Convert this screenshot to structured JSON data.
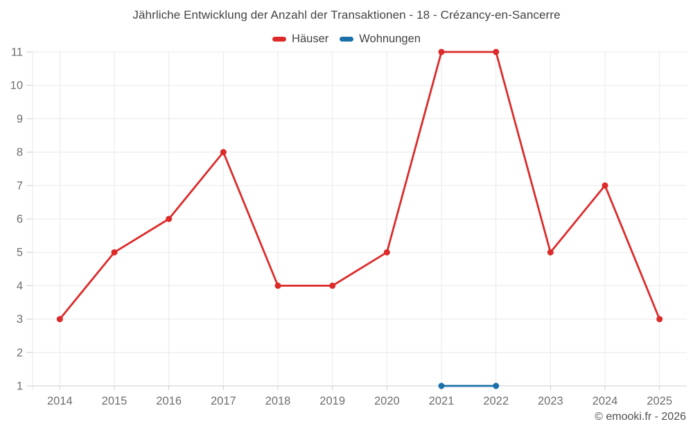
{
  "title": "Jährliche Entwicklung der Anzahl der Transaktionen - 18 - Crézancy-en-Sancerre",
  "copyright": "© emooki.fr - 2026",
  "colors": {
    "grid": "#e8e8e8",
    "axis": "#cccccc",
    "tick_label": "#6e6e6e",
    "title_text": "#424242",
    "hauser_red": "#dc2a2a",
    "wohnungen_blue": "#1a70a8"
  },
  "chart_data": {
    "type": "line",
    "title": "Jährliche Entwicklung der Anzahl der Transaktionen - 18 - Crézancy-en-Sancerre",
    "xlabel": "",
    "ylabel": "",
    "x": [
      "2014",
      "2015",
      "2016",
      "2017",
      "2018",
      "2019",
      "2020",
      "2021",
      "2022",
      "2023",
      "2024",
      "2025"
    ],
    "series": [
      {
        "name": "Häuser",
        "color": "#dc2a2a",
        "values": [
          3,
          5,
          6,
          8,
          4,
          4,
          5,
          11,
          11,
          5,
          7,
          3
        ]
      },
      {
        "name": "Wohnungen",
        "color": "#1a70a8",
        "values": [
          null,
          null,
          null,
          null,
          null,
          null,
          null,
          1,
          1,
          null,
          null,
          null
        ]
      }
    ],
    "ylim": [
      1,
      11
    ],
    "yticks": [
      1,
      2,
      3,
      4,
      5,
      6,
      7,
      8,
      9,
      10,
      11
    ],
    "grid": true,
    "legend_position": "top"
  }
}
